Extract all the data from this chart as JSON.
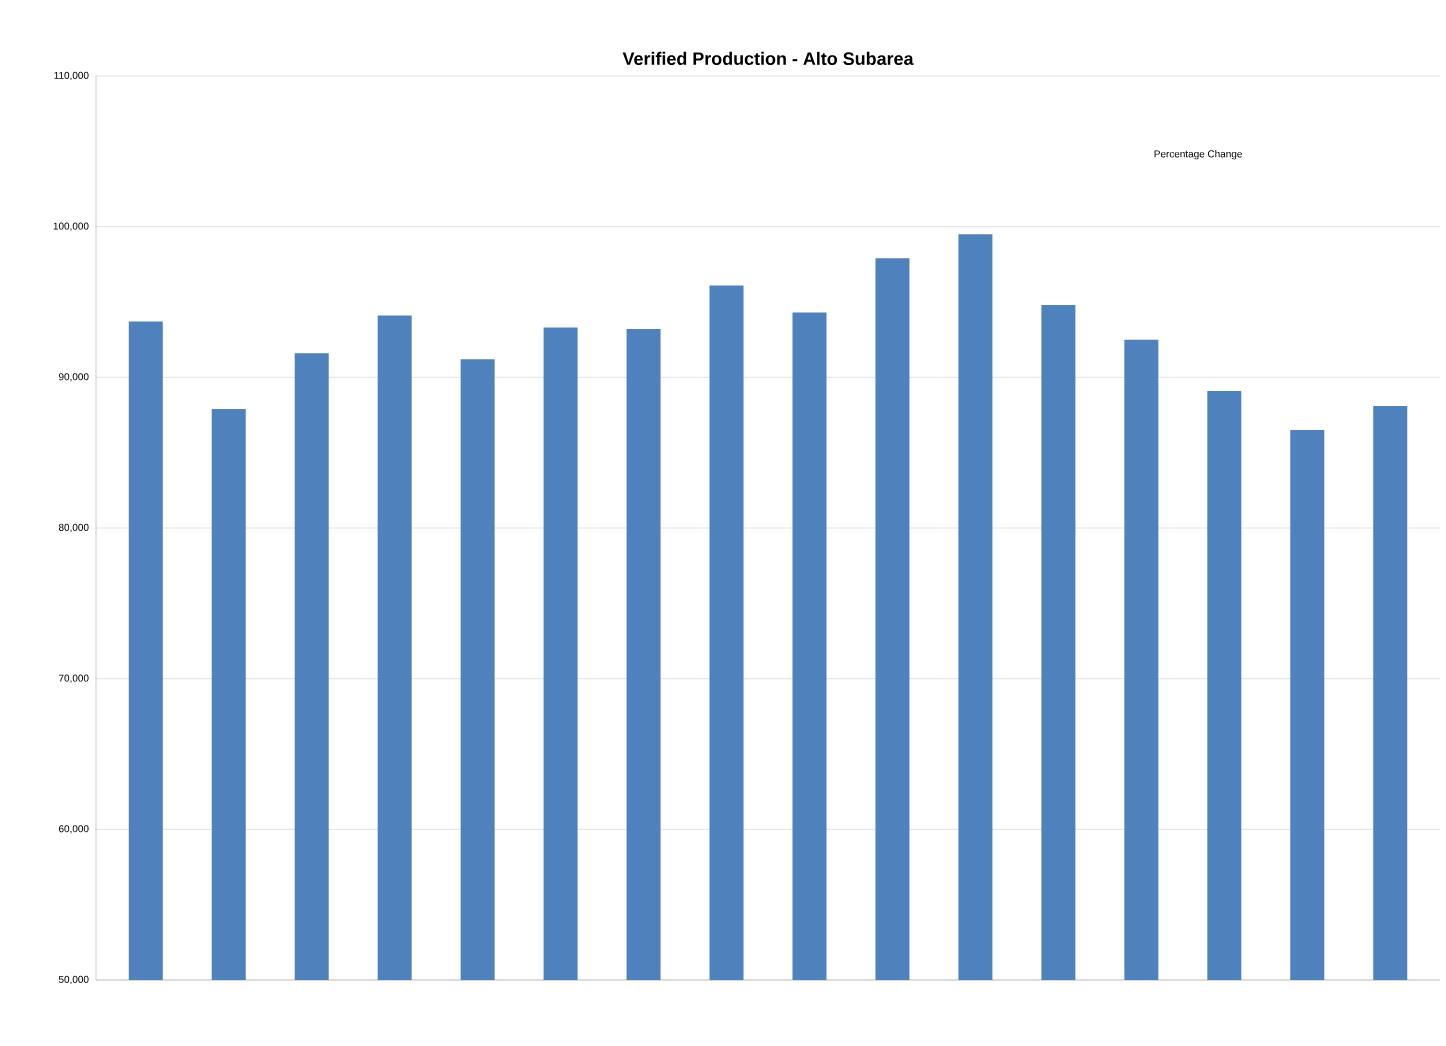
{
  "chart_data": {
    "type": "bar",
    "title": "Verified Production - Alto Subarea",
    "categories": [
      null,
      null,
      null,
      null,
      null,
      null,
      null,
      null,
      null,
      null,
      null,
      null,
      null,
      null,
      null,
      null
    ],
    "values": [
      93700,
      87900,
      91600,
      94100,
      91200,
      93300,
      93200,
      96100,
      94300,
      97900,
      99500,
      94800,
      92500,
      89100,
      86500,
      88100
    ],
    "color": "#4f81bd",
    "ylim": [
      50000,
      110000
    ],
    "yticks": [
      {
        "value": 50000,
        "label": "50,000"
      },
      {
        "value": 60000,
        "label": "60,000"
      },
      {
        "value": 70000,
        "label": "70,000"
      },
      {
        "value": 80000,
        "label": "80,000"
      },
      {
        "value": 90000,
        "label": "90,000"
      },
      {
        "value": 100000,
        "label": "100,000"
      },
      {
        "value": 110000,
        "label": "110,000"
      }
    ],
    "grid": "y",
    "annotations": [
      "Percentage Change"
    ]
  }
}
